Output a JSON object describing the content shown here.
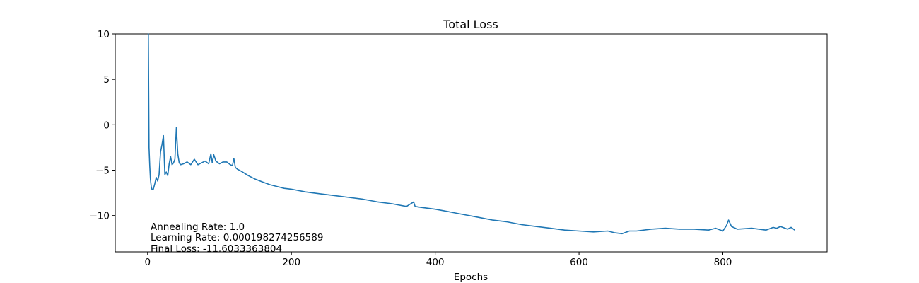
{
  "chart_data": {
    "type": "line",
    "title": "Total Loss",
    "xlabel": "Epochs",
    "ylabel": "",
    "xlim": [
      -45,
      945
    ],
    "ylim": [
      -14,
      10
    ],
    "xticks": [
      0,
      200,
      400,
      600,
      800
    ],
    "yticks": [
      10,
      5,
      0,
      -5,
      -10
    ],
    "grid": false,
    "line_color": "#1f77b4",
    "annotations": [
      "Annealing Rate: 1.0",
      "Learning Rate: 0.000198274256589",
      "Final Loss: -11.6033363804"
    ],
    "series": [
      {
        "x": [
          0,
          1,
          2,
          3,
          4,
          5,
          6,
          8,
          10,
          12,
          14,
          16,
          18,
          20,
          22,
          24,
          26,
          28,
          30,
          32,
          34,
          36,
          38,
          40,
          42,
          44,
          46,
          50,
          55,
          60,
          65,
          70,
          75,
          80,
          85,
          88,
          90,
          92,
          95,
          100,
          105,
          110,
          115,
          118,
          120,
          122,
          125,
          130,
          140,
          150,
          160,
          170,
          180,
          190,
          200,
          220,
          240,
          260,
          280,
          300,
          320,
          340,
          360,
          370,
          372,
          380,
          400,
          420,
          440,
          460,
          480,
          500,
          520,
          540,
          560,
          580,
          600,
          620,
          640,
          650,
          660,
          670,
          680,
          700,
          720,
          740,
          760,
          780,
          790,
          800,
          805,
          808,
          812,
          820,
          840,
          860,
          870,
          875,
          880,
          890,
          895,
          900
        ],
        "y": [
          10,
          10,
          -2.5,
          -4.5,
          -6.0,
          -6.8,
          -7.1,
          -7.1,
          -6.5,
          -5.8,
          -6.2,
          -5.5,
          -3.0,
          -2.2,
          -1.2,
          -5.5,
          -5.2,
          -5.6,
          -4.3,
          -3.5,
          -4.4,
          -4.2,
          -3.8,
          -0.3,
          -3.2,
          -4.2,
          -4.4,
          -4.3,
          -4.1,
          -4.4,
          -3.8,
          -4.4,
          -4.2,
          -4.0,
          -4.3,
          -3.2,
          -4.2,
          -3.3,
          -4.0,
          -4.3,
          -4.1,
          -4.1,
          -4.4,
          -4.5,
          -3.7,
          -4.7,
          -4.9,
          -5.1,
          -5.6,
          -6.0,
          -6.3,
          -6.6,
          -6.8,
          -7.0,
          -7.1,
          -7.4,
          -7.6,
          -7.8,
          -8.0,
          -8.2,
          -8.5,
          -8.7,
          -9.0,
          -8.5,
          -9.0,
          -9.1,
          -9.3,
          -9.6,
          -9.9,
          -10.2,
          -10.5,
          -10.7,
          -11.0,
          -11.2,
          -11.4,
          -11.6,
          -11.7,
          -11.8,
          -11.7,
          -11.9,
          -12.0,
          -11.7,
          -11.7,
          -11.5,
          -11.4,
          -11.5,
          -11.5,
          -11.6,
          -11.4,
          -11.7,
          -11.1,
          -10.5,
          -11.2,
          -11.5,
          -11.4,
          -11.6,
          -11.3,
          -11.4,
          -11.2,
          -11.5,
          -11.3,
          -11.6
        ]
      }
    ]
  }
}
